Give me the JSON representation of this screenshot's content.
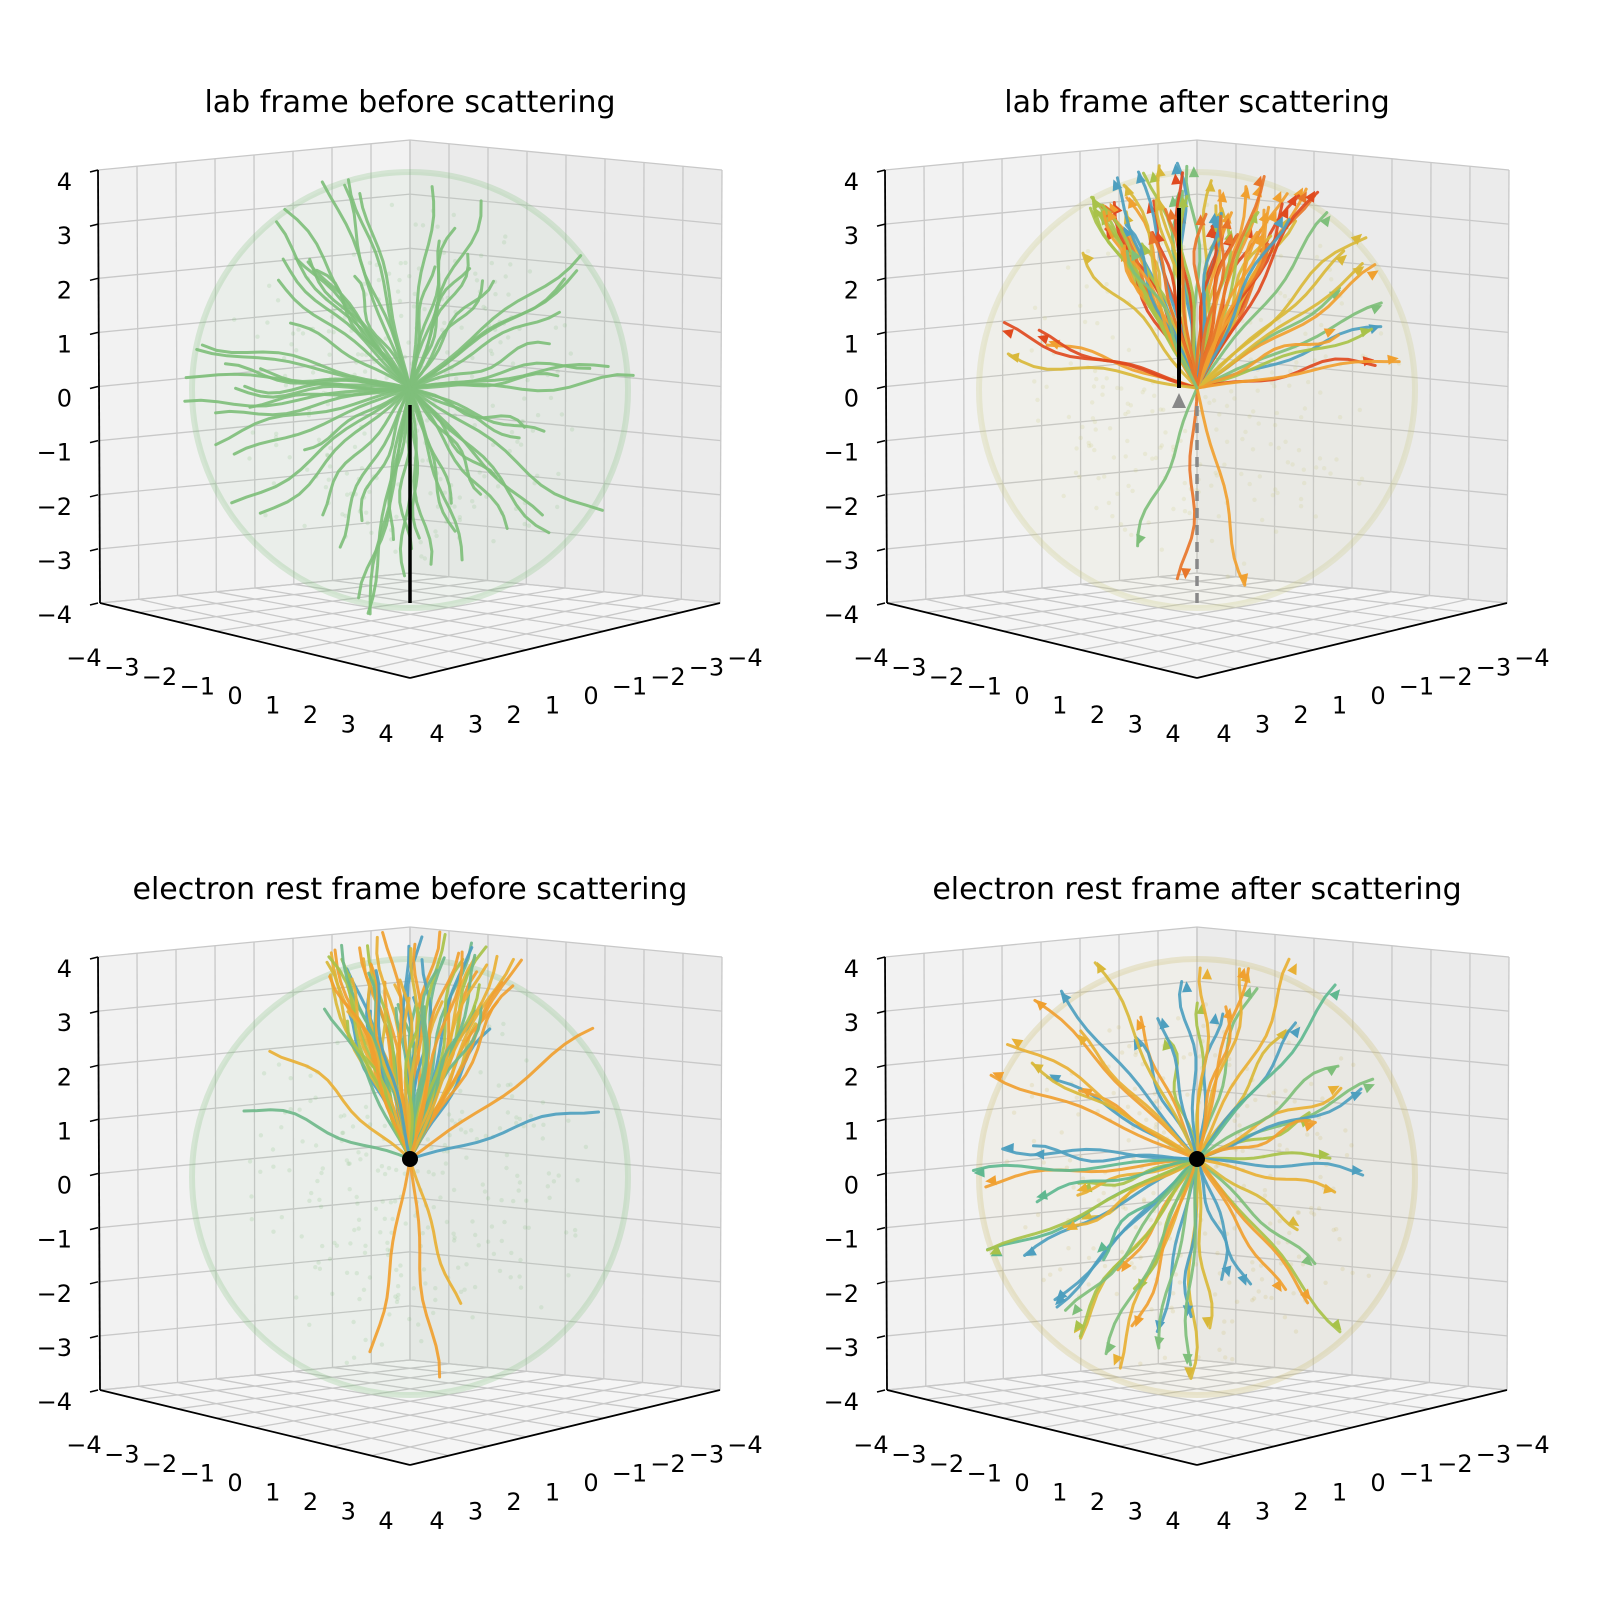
{
  "chart_data": [
    {
      "type": "scatter",
      "title": "lab frame before scattering",
      "projection": "3d",
      "xlim": [
        -4,
        4
      ],
      "ylim": [
        -4,
        4
      ],
      "zlim": [
        -4,
        4
      ],
      "x_ticks": [
        "−4",
        "−3",
        "−2",
        "−1",
        "0",
        "1",
        "2",
        "3",
        "4"
      ],
      "y_ticks": [
        "4",
        "3",
        "2",
        "1",
        "0",
        "−1",
        "−2",
        "−3",
        "−4"
      ],
      "z_ticks": [
        "4",
        "3",
        "2",
        "1",
        "0",
        "−1",
        "−2",
        "−3",
        "−4"
      ],
      "grid": true,
      "sphere_radius": 4,
      "sphere_color": "#7fbf7b",
      "electron_track": {
        "z_from": -4,
        "z_to": 0,
        "style": "solid",
        "color": "#000000"
      },
      "photon_paths": {
        "count": 70,
        "distribution": "isotropic",
        "colors": [
          "#7fbf7b"
        ],
        "arrowheads": false,
        "seed": 11
      }
    },
    {
      "type": "scatter",
      "title": "lab frame after scattering",
      "projection": "3d",
      "xlim": [
        -4,
        4
      ],
      "ylim": [
        -4,
        4
      ],
      "zlim": [
        -4,
        4
      ],
      "x_ticks": [
        "−4",
        "−3",
        "−2",
        "−1",
        "0",
        "1",
        "2",
        "3",
        "4"
      ],
      "y_ticks": [
        "4",
        "3",
        "2",
        "1",
        "0",
        "−1",
        "−2",
        "−3",
        "−4"
      ],
      "z_ticks": [
        "4",
        "3",
        "2",
        "1",
        "0",
        "−1",
        "−2",
        "−3",
        "−4"
      ],
      "grid": true,
      "sphere_radius": 4,
      "sphere_color": "#c8c87a",
      "electron_track": {
        "z_from": -4,
        "z_to": 0,
        "style": "dashed",
        "color": "#888888"
      },
      "electron_out": {
        "z_from": 0,
        "z_to": 3.3,
        "color": "#000000"
      },
      "photon_paths": {
        "count": 90,
        "distribution": "forward-cone",
        "colors": [
          "#e04a1f",
          "#e8762a",
          "#f0a030",
          "#d9b83a",
          "#a8c24a",
          "#7fbf7b",
          "#4e9fbf"
        ],
        "arrowheads": true,
        "seed": 23
      }
    },
    {
      "type": "scatter",
      "title": "electron rest frame before scattering",
      "projection": "3d",
      "xlim": [
        -4,
        4
      ],
      "ylim": [
        -4,
        4
      ],
      "zlim": [
        -4,
        4
      ],
      "x_ticks": [
        "−4",
        "−3",
        "−2",
        "−1",
        "0",
        "1",
        "2",
        "3",
        "4"
      ],
      "y_ticks": [
        "4",
        "3",
        "2",
        "1",
        "0",
        "−1",
        "−2",
        "−3",
        "−4"
      ],
      "z_ticks": [
        "4",
        "3",
        "2",
        "1",
        "0",
        "−1",
        "−2",
        "−3",
        "−4"
      ],
      "grid": true,
      "sphere_radius": 4,
      "sphere_color": "#7fbf7b",
      "electron_point": {
        "x": 0,
        "y": 0,
        "z": 0,
        "color": "#000000"
      },
      "photon_paths": {
        "count": 80,
        "distribution": "forward-cone",
        "colors": [
          "#f0a030",
          "#e8b035",
          "#d9b83a",
          "#a8c24a",
          "#6fb88a",
          "#4e9fbf"
        ],
        "arrowheads": false,
        "seed": 37
      }
    },
    {
      "type": "scatter",
      "title": "electron rest frame after scattering",
      "projection": "3d",
      "xlim": [
        -4,
        4
      ],
      "ylim": [
        -4,
        4
      ],
      "zlim": [
        -4,
        4
      ],
      "x_ticks": [
        "−4",
        "−3",
        "−2",
        "−1",
        "0",
        "1",
        "2",
        "3",
        "4"
      ],
      "y_ticks": [
        "4",
        "3",
        "2",
        "1",
        "0",
        "−1",
        "−2",
        "−3",
        "−4"
      ],
      "z_ticks": [
        "4",
        "3",
        "2",
        "1",
        "0",
        "−1",
        "−2",
        "−3",
        "−4"
      ],
      "grid": true,
      "sphere_radius": 4,
      "sphere_color": "#c8b860",
      "electron_point": {
        "x": 0,
        "y": 0,
        "z": 0,
        "color": "#000000"
      },
      "photon_paths": {
        "count": 70,
        "distribution": "isotropic",
        "colors": [
          "#f0a030",
          "#e8b035",
          "#d9b83a",
          "#a8c24a",
          "#7fbf7b",
          "#5fb890",
          "#4e9fbf"
        ],
        "arrowheads": true,
        "seed": 51
      }
    }
  ]
}
